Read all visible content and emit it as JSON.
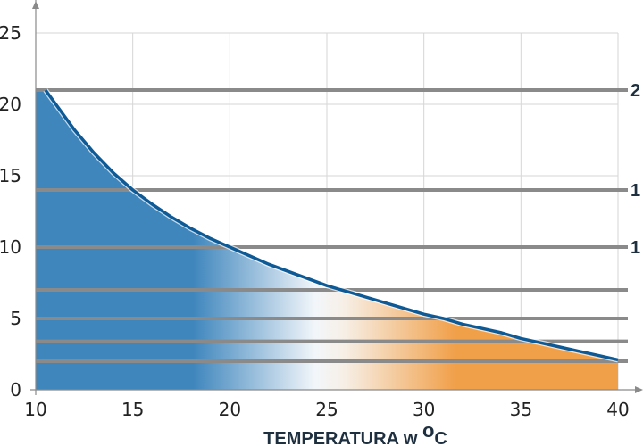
{
  "chart_data": {
    "type": "area",
    "title": "",
    "xlabel": {
      "text": "TEMPERATURA  w ",
      "unit_sup": "o",
      "unit": "C"
    },
    "ylabel": "",
    "xlim": [
      10,
      40
    ],
    "ylim": [
      0,
      25
    ],
    "x_ticks": [
      "10",
      "15",
      "20",
      "25",
      "30",
      "35",
      "40"
    ],
    "y_ticks": [
      "0",
      "5",
      "10",
      "15",
      "20",
      "25"
    ],
    "grid": true,
    "curve": {
      "x": [
        10.5,
        12,
        13,
        14,
        15,
        16,
        17,
        18,
        19,
        20,
        21,
        22,
        23,
        24,
        25,
        26,
        27,
        28,
        29,
        30,
        31,
        32,
        33,
        34,
        35,
        36,
        37,
        38,
        39,
        40
      ],
      "y": [
        21.0,
        18.2,
        16.6,
        15.2,
        14.0,
        13.0,
        12.1,
        11.3,
        10.6,
        10.0,
        9.4,
        8.8,
        8.3,
        7.8,
        7.3,
        6.9,
        6.5,
        6.1,
        5.7,
        5.3,
        5.0,
        4.6,
        4.3,
        4.0,
        3.6,
        3.3,
        3.0,
        2.7,
        2.4,
        2.1
      ]
    },
    "horizontal_lines": [
      {
        "y": 21,
        "label": "2"
      },
      {
        "y": 14,
        "label": "1"
      },
      {
        "y": 10,
        "label": "1"
      },
      {
        "y": 7,
        "label": ""
      },
      {
        "y": 5,
        "label": ""
      },
      {
        "y": 3.4,
        "label": ""
      },
      {
        "y": 2,
        "label": ""
      }
    ],
    "colors": {
      "cold": "#3f86bd",
      "neutral": "#f2f6fa",
      "warm": "#f1a04a",
      "curve": "#0e5a96",
      "hline": "#8a8a8a",
      "grid": "#d6d6d6",
      "axis": "#8a8a8a"
    }
  }
}
